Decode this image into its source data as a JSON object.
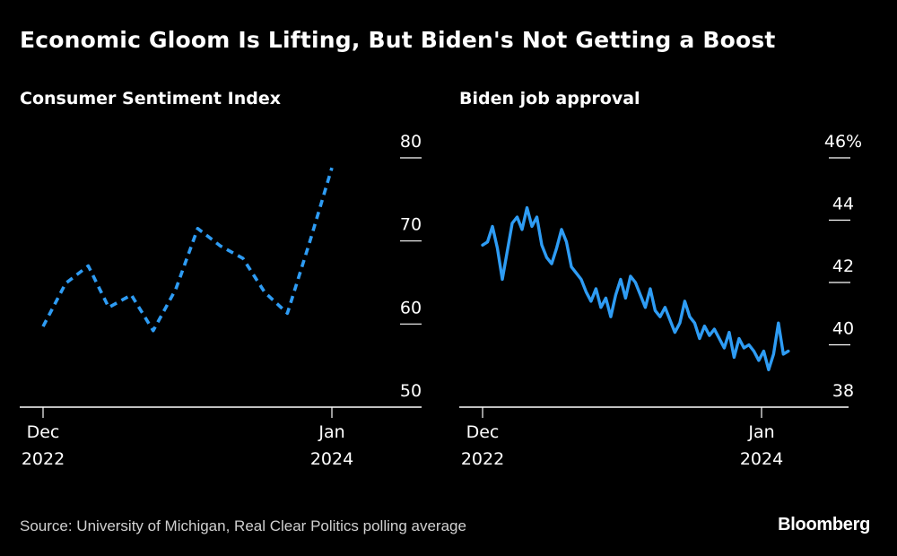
{
  "title": "Economic Gloom Is Lifting, But Biden's Not Getting a Boost",
  "source": "Source: University of Michigan, Real Clear Politics polling average",
  "brand": "Bloomberg",
  "colors": {
    "background": "#000000",
    "series": "#2e9cf4",
    "axis": "#ffffff",
    "text": "#ffffff"
  },
  "chart_data": [
    {
      "type": "line",
      "title": "Consumer Sentiment Index",
      "line_style": "dashed",
      "x": [
        "2022-12",
        "2023-01",
        "2023-02",
        "2023-03",
        "2023-04",
        "2023-05",
        "2023-06",
        "2023-07",
        "2023-08",
        "2023-09",
        "2023-10",
        "2023-11",
        "2023-12",
        "2024-01"
      ],
      "series": [
        {
          "values": [
            59.7,
            64.9,
            67.0,
            62.0,
            63.5,
            59.2,
            64.2,
            71.5,
            69.4,
            67.9,
            63.8,
            61.3,
            69.7,
            78.8
          ]
        }
      ],
      "ylim": [
        50,
        80
      ],
      "yticks": [
        50,
        60,
        70,
        80
      ],
      "ytick_labels": [
        "50",
        "60",
        "70",
        "80"
      ],
      "xticks": [
        {
          "x": "2022-12",
          "line1": "Dec",
          "line2": "2022"
        },
        {
          "x": "2024-01",
          "line1": "Jan",
          "line2": "2024"
        }
      ],
      "xlabel": "",
      "ylabel": "",
      "grid": false,
      "legend": "none"
    },
    {
      "type": "line",
      "title": "Biden job approval",
      "line_style": "solid",
      "x": [
        "2022-12-01",
        "2022-12-08",
        "2022-12-15",
        "2022-12-22",
        "2022-12-29",
        "2023-01-05",
        "2023-01-12",
        "2023-01-19",
        "2023-01-26",
        "2023-02-02",
        "2023-02-09",
        "2023-02-16",
        "2023-02-23",
        "2023-03-02",
        "2023-03-09",
        "2023-03-16",
        "2023-03-23",
        "2023-03-30",
        "2023-04-06",
        "2023-04-13",
        "2023-04-20",
        "2023-04-27",
        "2023-05-04",
        "2023-05-11",
        "2023-05-18",
        "2023-05-25",
        "2023-06-01",
        "2023-06-08",
        "2023-06-15",
        "2023-06-22",
        "2023-06-29",
        "2023-07-06",
        "2023-07-13",
        "2023-07-20",
        "2023-07-27",
        "2023-08-03",
        "2023-08-10",
        "2023-08-17",
        "2023-08-24",
        "2023-08-31",
        "2023-09-07",
        "2023-09-14",
        "2023-09-21",
        "2023-09-28",
        "2023-10-05",
        "2023-10-12",
        "2023-10-19",
        "2023-10-26",
        "2023-11-02",
        "2023-11-09",
        "2023-11-16",
        "2023-11-23",
        "2023-11-30",
        "2023-12-07",
        "2023-12-14",
        "2023-12-21",
        "2023-12-28",
        "2024-01-04",
        "2024-01-11",
        "2024-01-18",
        "2024-01-25",
        "2024-02-01",
        "2024-02-08"
      ],
      "series": [
        {
          "values": [
            43.2,
            43.3,
            43.8,
            43.1,
            42.1,
            43.0,
            43.9,
            44.1,
            43.7,
            44.4,
            43.8,
            44.1,
            43.2,
            42.8,
            42.6,
            43.1,
            43.7,
            43.3,
            42.5,
            42.3,
            42.1,
            41.7,
            41.4,
            41.8,
            41.2,
            41.5,
            40.9,
            41.6,
            42.1,
            41.5,
            42.2,
            42.0,
            41.6,
            41.2,
            41.8,
            41.1,
            40.9,
            41.2,
            40.8,
            40.4,
            40.7,
            41.4,
            40.9,
            40.7,
            40.2,
            40.6,
            40.3,
            40.5,
            40.2,
            39.9,
            40.4,
            39.6,
            40.2,
            39.9,
            40.0,
            39.8,
            39.5,
            39.8,
            39.2,
            39.7,
            40.7,
            39.7,
            39.8
          ]
        }
      ],
      "ylim": [
        38,
        46
      ],
      "yticks": [
        38,
        40,
        42,
        44,
        46
      ],
      "ytick_labels": [
        "38",
        "40",
        "42",
        "44",
        "46%"
      ],
      "xticks": [
        {
          "x": "2022-12-01",
          "line1": "Dec",
          "line2": "2022"
        },
        {
          "x": "2024-01-01",
          "line1": "Jan",
          "line2": "2024"
        }
      ],
      "xlabel": "",
      "ylabel": "",
      "grid": false,
      "legend": "none"
    }
  ]
}
